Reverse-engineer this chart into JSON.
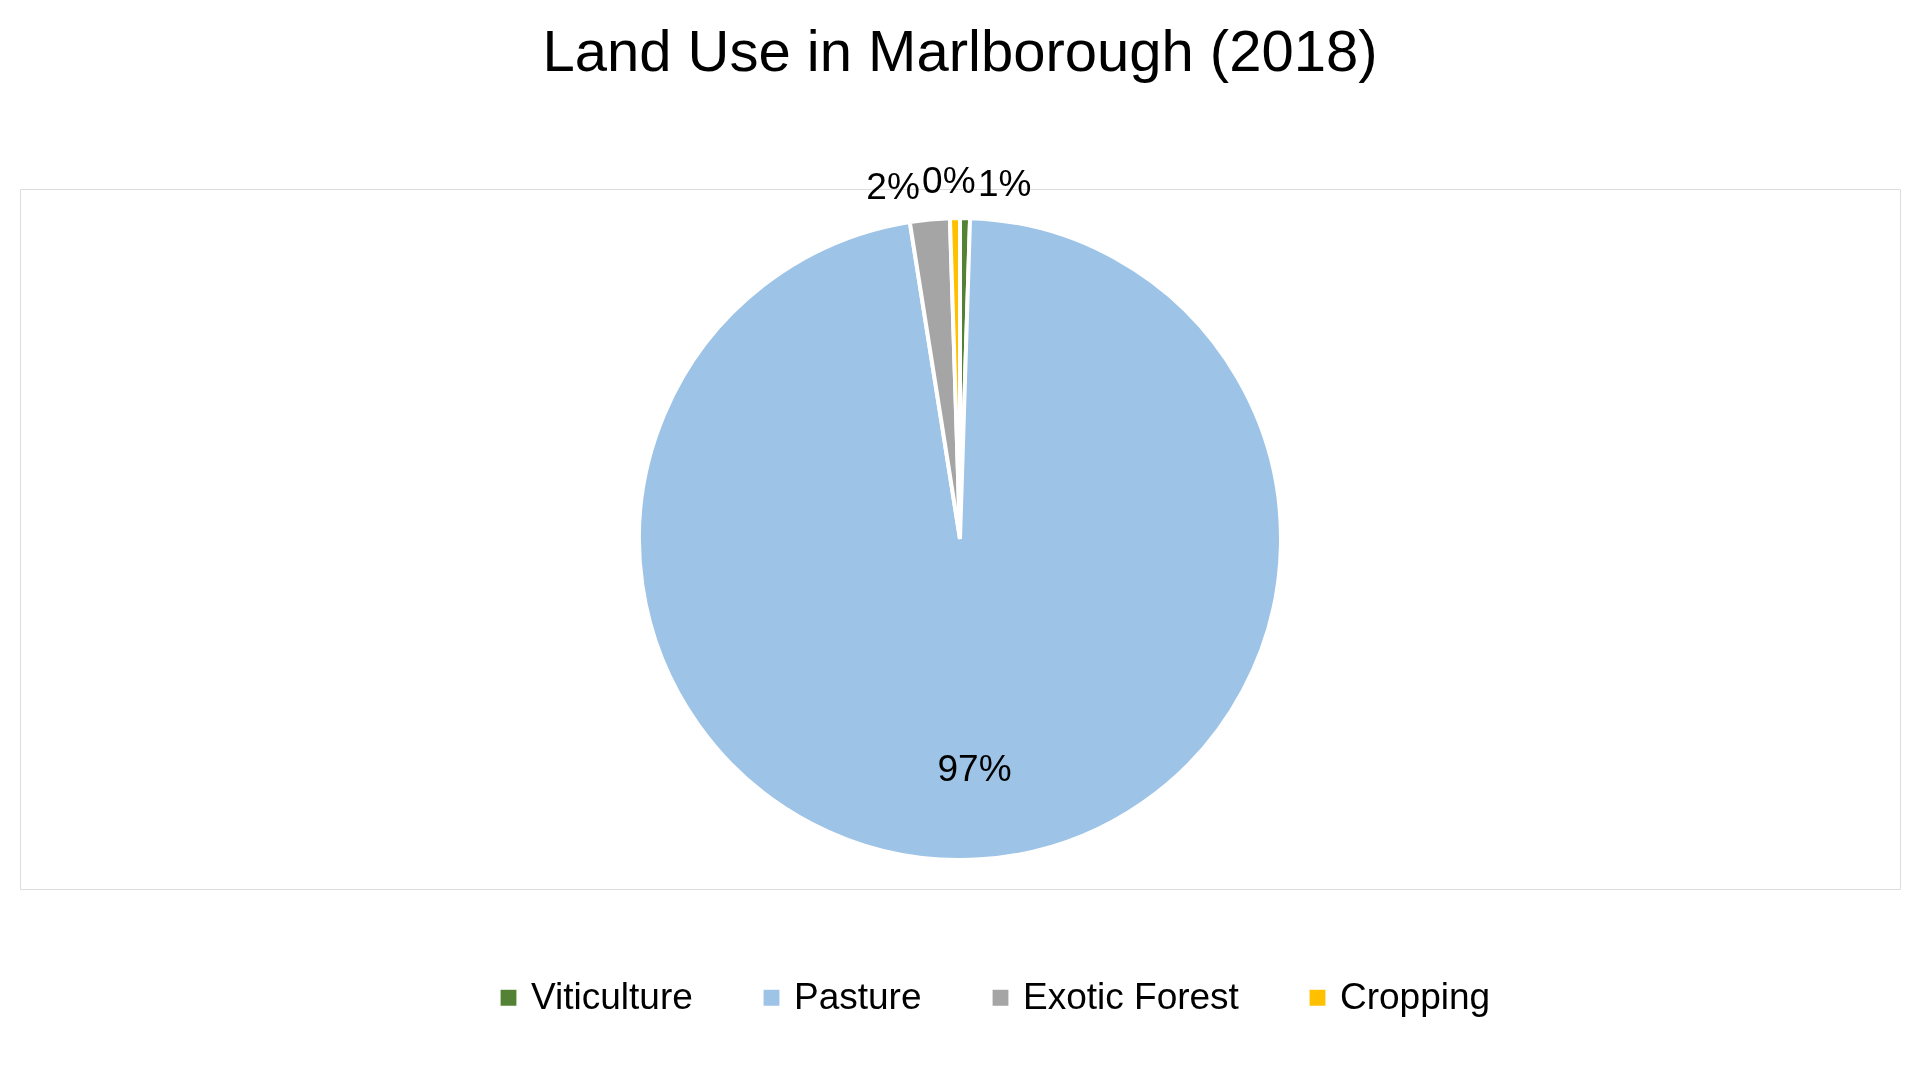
{
  "chart_data": {
    "type": "pie",
    "title": "Land Use in Marlborough (2018)",
    "categories": [
      "Viticulture",
      "Pasture",
      "Exotic Forest",
      "Cropping"
    ],
    "values": [
      0.5,
      97,
      2,
      0.5
    ],
    "value_labels": [
      "1%",
      "97%",
      "2%",
      "0%"
    ],
    "colors": [
      "#548235",
      "#9dc3e6",
      "#a5a5a5",
      "#ffc000"
    ],
    "legend": "bottom"
  }
}
